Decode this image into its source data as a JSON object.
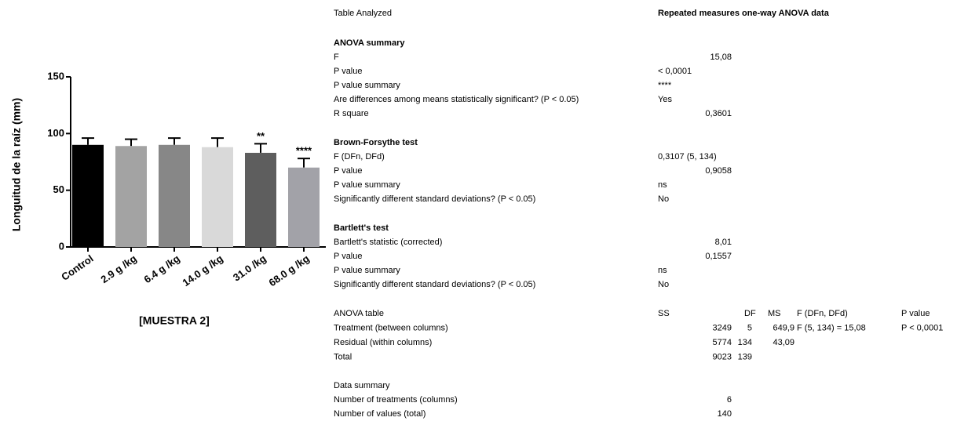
{
  "chart_data": {
    "type": "bar",
    "y_label": "Longuitud de la raíz (mm)",
    "x_label": "[MUESTRA 2]",
    "categories": [
      "Control",
      "2.9 g /kg",
      "6.4 g /kg",
      "14.0 g /kg",
      "31.0 /kg",
      "68.0 g /kg"
    ],
    "values": [
      90,
      89,
      90,
      88,
      83,
      70
    ],
    "errors": [
      6,
      6,
      6,
      8,
      8,
      8
    ],
    "annotations": [
      null,
      null,
      null,
      null,
      "**",
      "****"
    ],
    "colors": [
      "#000000",
      "#a3a3a3",
      "#878787",
      "#d9d9d9",
      "#5e5e5e",
      "#a2a2a8"
    ],
    "ylim": [
      0,
      150
    ],
    "yticks": [
      0,
      50,
      100,
      150
    ]
  },
  "table_analyzed": [
    "Table Analyzed",
    "Repeated measures one-way ANOVA data"
  ],
  "sections": [
    {
      "title": "ANOVA summary",
      "rows": [
        [
          "F",
          "15,08"
        ],
        [
          "P value",
          "< 0,0001"
        ],
        [
          "P value summary",
          "****"
        ],
        [
          "Are differences among means statistically significant? (P < 0.05)",
          "Yes"
        ],
        [
          "R square",
          "0,3601"
        ]
      ]
    },
    {
      "title": "Brown-Forsythe test",
      "rows": [
        [
          "F (DFn, DFd)",
          "0,3107 (5, 134)"
        ],
        [
          "P value",
          "0,9058"
        ],
        [
          "P value summary",
          "ns"
        ],
        [
          "Significantly different standard deviations? (P < 0.05)",
          "No"
        ]
      ]
    },
    {
      "title": "Bartlett's test",
      "rows": [
        [
          "Bartlett's statistic (corrected)",
          "8,01"
        ],
        [
          "P value",
          "0,1557"
        ],
        [
          "P value summary",
          "ns"
        ],
        [
          "Significantly different standard deviations? (P < 0.05)",
          "No"
        ]
      ]
    }
  ],
  "anova_table": {
    "header": [
      "ANOVA table",
      "SS",
      "DF",
      "MS",
      "F (DFn, DFd)",
      "P value"
    ],
    "rows": [
      [
        "Treatment (between columns)",
        "3249",
        "5",
        "649,9",
        "F (5, 134) = 15,08",
        "P < 0,0001"
      ],
      [
        "Residual (within columns)",
        "5774",
        "134",
        "43,09"
      ],
      [
        "Total",
        "9023",
        "139"
      ]
    ]
  },
  "data_summary": {
    "title": "Data summary",
    "rows": [
      [
        "Number of treatments (columns)",
        "6"
      ],
      [
        "Number of values (total)",
        "140"
      ]
    ]
  }
}
